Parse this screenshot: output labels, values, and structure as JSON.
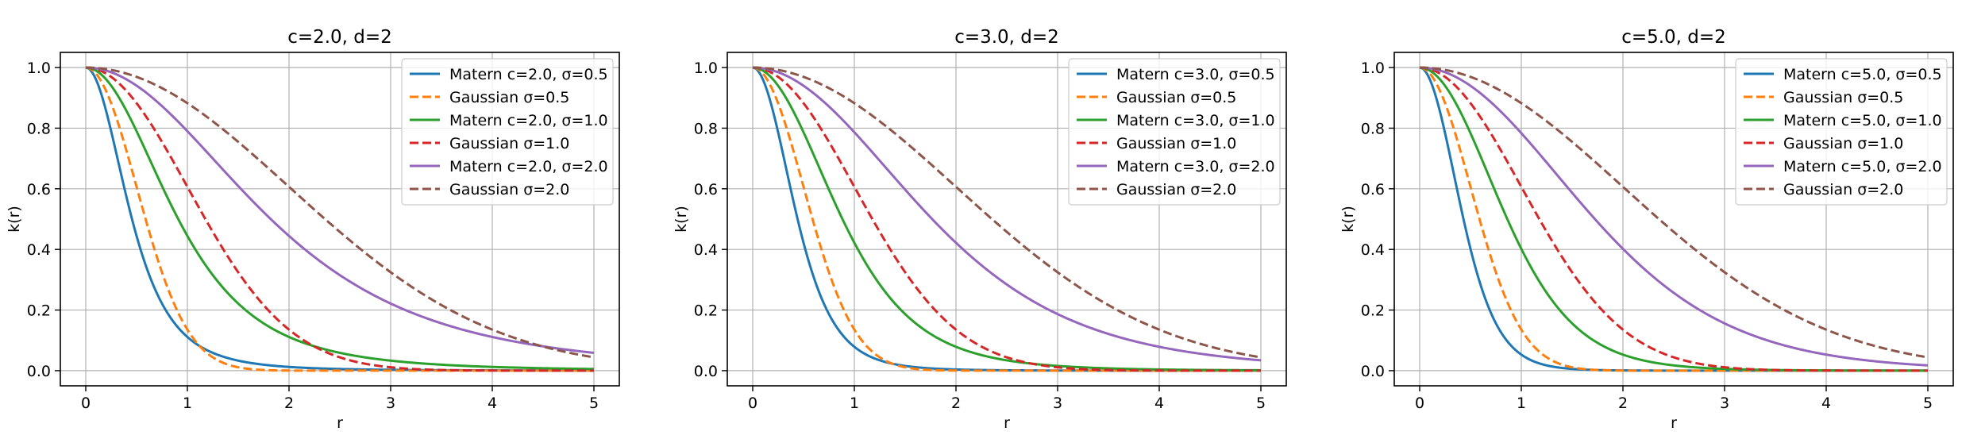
{
  "chart_data": [
    {
      "type": "line",
      "title": "c=2.0, d=2",
      "xlabel": "r",
      "ylabel": "k(r)",
      "xlim": [
        -0.25,
        5.25
      ],
      "ylim": [
        -0.05,
        1.05
      ],
      "xticks": [
        0,
        1,
        2,
        3,
        4,
        5
      ],
      "xtick_labels": [
        "0",
        "1",
        "2",
        "3",
        "4",
        "5"
      ],
      "yticks": [
        0.0,
        0.2,
        0.4,
        0.6,
        0.8,
        1.0
      ],
      "ytick_labels": [
        "0.0",
        "0.2",
        "0.4",
        "0.6",
        "0.8",
        "1.0"
      ],
      "grid": true,
      "legend_position": "top-right",
      "series": [
        {
          "name": "Matern c=2.0, σ=0.5",
          "color": "#1f77b4",
          "style": "solid",
          "kind": "matern",
          "c": 2.0,
          "sigma": 0.5
        },
        {
          "name": "Gaussian σ=0.5",
          "color": "#ff7f0e",
          "style": "dashed",
          "kind": "gaussian",
          "sigma": 0.5
        },
        {
          "name": "Matern c=2.0, σ=1.0",
          "color": "#2ca02c",
          "style": "solid",
          "kind": "matern",
          "c": 2.0,
          "sigma": 1.0
        },
        {
          "name": "Gaussian σ=1.0",
          "color": "#d62728",
          "style": "dashed",
          "kind": "gaussian",
          "sigma": 1.0
        },
        {
          "name": "Matern c=2.0, σ=2.0",
          "color": "#9467bd",
          "style": "solid",
          "kind": "matern",
          "c": 2.0,
          "sigma": 2.0
        },
        {
          "name": "Gaussian σ=2.0",
          "color": "#8c564b",
          "style": "dashed",
          "kind": "gaussian",
          "sigma": 2.0
        }
      ]
    },
    {
      "type": "line",
      "title": "c=3.0, d=2",
      "xlabel": "r",
      "ylabel": "k(r)",
      "xlim": [
        -0.25,
        5.25
      ],
      "ylim": [
        -0.05,
        1.05
      ],
      "xticks": [
        0,
        1,
        2,
        3,
        4,
        5
      ],
      "xtick_labels": [
        "0",
        "1",
        "2",
        "3",
        "4",
        "5"
      ],
      "yticks": [
        0.0,
        0.2,
        0.4,
        0.6,
        0.8,
        1.0
      ],
      "ytick_labels": [
        "0.0",
        "0.2",
        "0.4",
        "0.6",
        "0.8",
        "1.0"
      ],
      "grid": true,
      "legend_position": "top-right",
      "series": [
        {
          "name": "Matern c=3.0, σ=0.5",
          "color": "#1f77b4",
          "style": "solid",
          "kind": "matern",
          "c": 3.0,
          "sigma": 0.5
        },
        {
          "name": "Gaussian σ=0.5",
          "color": "#ff7f0e",
          "style": "dashed",
          "kind": "gaussian",
          "sigma": 0.5
        },
        {
          "name": "Matern c=3.0, σ=1.0",
          "color": "#2ca02c",
          "style": "solid",
          "kind": "matern",
          "c": 3.0,
          "sigma": 1.0
        },
        {
          "name": "Gaussian σ=1.0",
          "color": "#d62728",
          "style": "dashed",
          "kind": "gaussian",
          "sigma": 1.0
        },
        {
          "name": "Matern c=3.0, σ=2.0",
          "color": "#9467bd",
          "style": "solid",
          "kind": "matern",
          "c": 3.0,
          "sigma": 2.0
        },
        {
          "name": "Gaussian σ=2.0",
          "color": "#8c564b",
          "style": "dashed",
          "kind": "gaussian",
          "sigma": 2.0
        }
      ]
    },
    {
      "type": "line",
      "title": "c=5.0, d=2",
      "xlabel": "r",
      "ylabel": "k(r)",
      "xlim": [
        -0.25,
        5.25
      ],
      "ylim": [
        -0.05,
        1.05
      ],
      "xticks": [
        0,
        1,
        2,
        3,
        4,
        5
      ],
      "xtick_labels": [
        "0",
        "1",
        "2",
        "3",
        "4",
        "5"
      ],
      "yticks": [
        0.0,
        0.2,
        0.4,
        0.6,
        0.8,
        1.0
      ],
      "ytick_labels": [
        "0.0",
        "0.2",
        "0.4",
        "0.6",
        "0.8",
        "1.0"
      ],
      "grid": true,
      "legend_position": "top-right",
      "series": [
        {
          "name": "Matern c=5.0, σ=0.5",
          "color": "#1f77b4",
          "style": "solid",
          "kind": "matern",
          "c": 5.0,
          "sigma": 0.5
        },
        {
          "name": "Gaussian σ=0.5",
          "color": "#ff7f0e",
          "style": "dashed",
          "kind": "gaussian",
          "sigma": 0.5
        },
        {
          "name": "Matern c=5.0, σ=1.0",
          "color": "#2ca02c",
          "style": "solid",
          "kind": "matern",
          "c": 5.0,
          "sigma": 1.0
        },
        {
          "name": "Gaussian σ=1.0",
          "color": "#d62728",
          "style": "dashed",
          "kind": "gaussian",
          "sigma": 1.0
        },
        {
          "name": "Matern c=5.0, σ=2.0",
          "color": "#9467bd",
          "style": "solid",
          "kind": "matern",
          "c": 5.0,
          "sigma": 2.0
        },
        {
          "name": "Gaussian σ=2.0",
          "color": "#8c564b",
          "style": "dashed",
          "kind": "gaussian",
          "sigma": 2.0
        }
      ]
    }
  ]
}
